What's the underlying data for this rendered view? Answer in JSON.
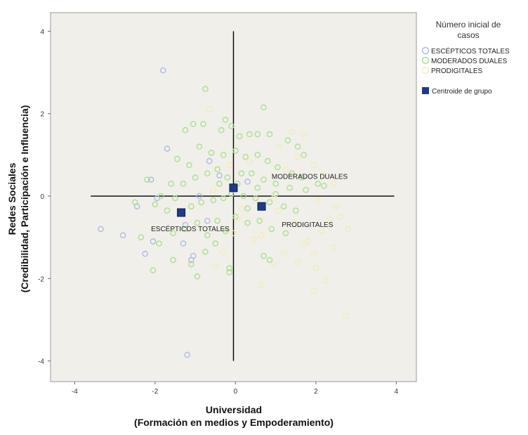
{
  "chart_data": {
    "type": "scatter",
    "xlabel_line1": "Universidad",
    "xlabel_line2": "(Formación en medios y Empoderamiento)",
    "ylabel_line1": "Redes Sociales",
    "ylabel_line2": "(Credibilidad, Participación e Influencia)",
    "xlim": [
      -4.6,
      4.5
    ],
    "ylim": [
      -4.5,
      4.45
    ],
    "xticks": [
      -4,
      -2,
      0,
      2,
      4
    ],
    "yticks": [
      -4,
      -2,
      0,
      2,
      4
    ],
    "grid": false,
    "legend": {
      "position": "right",
      "title_line1": "Número inicial de",
      "title_line2": "casos",
      "centroid_label": "Centroide de grupo"
    },
    "colors": {
      "background": "#f0efe9",
      "centroid": "#1f3b88",
      "axis_lines": "#000000"
    },
    "reference_lines": {
      "x_center": -0.05,
      "y_center": 0,
      "x_from": -3.6,
      "x_to": 3.95,
      "y_from": -4.0,
      "y_to": 4.0
    },
    "series": [
      {
        "name": "ESCÉPTICOS TOTALES",
        "color": "#a9b8e6",
        "points": [
          [
            -1.8,
            3.05
          ],
          [
            -1.7,
            1.15
          ],
          [
            -2.1,
            0.4
          ],
          [
            -1.95,
            -0.05
          ],
          [
            -2.45,
            -0.25
          ],
          [
            -3.35,
            -0.8
          ],
          [
            -2.8,
            -0.95
          ],
          [
            -2.05,
            -1.1
          ],
          [
            -2.25,
            -1.4
          ],
          [
            -1.3,
            -1.15
          ],
          [
            -1.1,
            -1.55
          ],
          [
            -1.05,
            -1.45
          ],
          [
            -0.7,
            -0.6
          ],
          [
            -1.2,
            -3.85
          ],
          [
            -1.25,
            -0.7
          ],
          [
            -0.65,
            0.85
          ],
          [
            -0.4,
            0.5
          ],
          [
            0.3,
            0.35
          ],
          [
            -0.9,
            0.0
          ]
        ]
      },
      {
        "name": "MODERADOS DUALES",
        "color": "#a6df8a",
        "points": [
          [
            -0.75,
            2.6
          ],
          [
            0.7,
            2.15
          ],
          [
            -1.25,
            1.6
          ],
          [
            -1.05,
            1.75
          ],
          [
            -0.8,
            1.75
          ],
          [
            -0.35,
            1.6
          ],
          [
            -0.25,
            1.85
          ],
          [
            -0.1,
            1.7
          ],
          [
            0.1,
            1.45
          ],
          [
            0.35,
            1.5
          ],
          [
            0.55,
            1.5
          ],
          [
            0.85,
            1.5
          ],
          [
            1.3,
            1.35
          ],
          [
            1.55,
            1.2
          ],
          [
            1.7,
            1.0
          ],
          [
            -1.45,
            0.9
          ],
          [
            -1.15,
            0.75
          ],
          [
            -0.9,
            1.2
          ],
          [
            -0.6,
            1.05
          ],
          [
            -0.3,
            1.0
          ],
          [
            0.0,
            1.1
          ],
          [
            0.25,
            0.95
          ],
          [
            0.55,
            1.0
          ],
          [
            0.8,
            0.85
          ],
          [
            1.05,
            0.7
          ],
          [
            1.4,
            0.55
          ],
          [
            1.65,
            0.45
          ],
          [
            2.05,
            0.3
          ],
          [
            2.2,
            0.25
          ],
          [
            -2.2,
            0.4
          ],
          [
            -1.6,
            0.3
          ],
          [
            -1.3,
            0.3
          ],
          [
            -1.0,
            0.45
          ],
          [
            -0.7,
            0.55
          ],
          [
            -0.45,
            0.65
          ],
          [
            -0.2,
            0.45
          ],
          [
            0.15,
            0.55
          ],
          [
            0.4,
            0.55
          ],
          [
            0.7,
            0.4
          ],
          [
            1.0,
            0.3
          ],
          [
            1.35,
            0.2
          ],
          [
            1.75,
            0.15
          ],
          [
            -2.5,
            -0.15
          ],
          [
            -2.0,
            -0.2
          ],
          [
            -1.7,
            -0.35
          ],
          [
            -1.5,
            -0.05
          ],
          [
            -1.1,
            -0.25
          ],
          [
            -0.85,
            -0.15
          ],
          [
            -0.55,
            -0.1
          ],
          [
            -0.3,
            -0.05
          ],
          [
            -0.1,
            0.05
          ],
          [
            0.2,
            0.0
          ],
          [
            0.5,
            -0.05
          ],
          [
            0.85,
            -0.15
          ],
          [
            1.2,
            -0.25
          ],
          [
            1.5,
            -0.35
          ],
          [
            -2.35,
            -1.0
          ],
          [
            -1.9,
            -1.15
          ],
          [
            -1.55,
            -0.9
          ],
          [
            -1.25,
            -0.8
          ],
          [
            -0.95,
            -0.65
          ],
          [
            -0.7,
            -0.95
          ],
          [
            -0.45,
            -0.6
          ],
          [
            -0.25,
            -0.85
          ],
          [
            0.0,
            -0.5
          ],
          [
            0.3,
            -0.65
          ],
          [
            0.6,
            -0.6
          ],
          [
            0.9,
            -0.8
          ],
          [
            1.25,
            -0.9
          ],
          [
            -1.55,
            -1.55
          ],
          [
            -1.1,
            -1.65
          ],
          [
            -0.75,
            -1.35
          ],
          [
            -0.5,
            -1.15
          ],
          [
            -0.15,
            -1.75
          ],
          [
            -0.15,
            -1.85
          ],
          [
            0.7,
            -1.45
          ],
          [
            0.85,
            -1.55
          ],
          [
            -2.05,
            -1.8
          ],
          [
            -0.95,
            -1.95
          ],
          [
            -1.85,
            0.0
          ],
          [
            0.55,
            0.2
          ],
          [
            1.0,
            0.05
          ],
          [
            0.05,
            0.3
          ],
          [
            -0.4,
            0.3
          ],
          [
            0.3,
            -0.3
          ]
        ]
      },
      {
        "name": "PRODIGITALES",
        "color": "#f3ecb6",
        "points": [
          [
            -0.65,
            2.1
          ],
          [
            1.4,
            1.55
          ],
          [
            1.7,
            1.5
          ],
          [
            1.1,
            1.2
          ],
          [
            1.55,
            0.95
          ],
          [
            1.95,
            0.75
          ],
          [
            2.2,
            0.5
          ],
          [
            2.45,
            0.3
          ],
          [
            2.05,
            -0.1
          ],
          [
            2.5,
            -0.25
          ],
          [
            2.35,
            -0.55
          ],
          [
            2.8,
            -0.8
          ],
          [
            2.15,
            -0.85
          ],
          [
            1.5,
            -0.65
          ],
          [
            1.7,
            -1.15
          ],
          [
            1.95,
            -1.4
          ],
          [
            2.45,
            -1.25
          ],
          [
            1.55,
            -1.6
          ],
          [
            2.0,
            -1.75
          ],
          [
            2.25,
            -2.05
          ],
          [
            1.95,
            -2.3
          ],
          [
            2.75,
            -2.9
          ],
          [
            0.65,
            -2.15
          ],
          [
            0.95,
            -1.65
          ],
          [
            0.45,
            -1.05
          ],
          [
            0.05,
            -0.55
          ],
          [
            -0.3,
            -1.35
          ],
          [
            -0.5,
            -1.7
          ],
          [
            -0.05,
            -0.9
          ],
          [
            0.65,
            -0.95
          ],
          [
            1.05,
            -0.35
          ],
          [
            0.95,
            -0.05
          ],
          [
            0.35,
            0.85
          ],
          [
            -0.55,
            0.15
          ],
          [
            1.8,
            -1.1
          ],
          [
            2.6,
            -0.5
          ],
          [
            0.15,
            -0.3
          ],
          [
            1.25,
            0.65
          ],
          [
            -0.15,
            0.75
          ],
          [
            1.2,
            -1.4
          ]
        ]
      }
    ],
    "centroids": [
      {
        "name": "ESCÉPTICOS TOTALES",
        "x": -1.35,
        "y": -0.4
      },
      {
        "name": "MODERADOS DUALES",
        "x": -0.05,
        "y": 0.2
      },
      {
        "name": "PRODIGITALES",
        "x": 0.65,
        "y": -0.25
      }
    ],
    "annotations": [
      {
        "text": "MODERADOS DUALES",
        "x": 0.9,
        "y": 0.42
      },
      {
        "text": "PRODIGITALES",
        "x": 1.15,
        "y": -0.75
      },
      {
        "text": "ESCÉPTICOS TOTALES",
        "x": -2.1,
        "y": -0.85
      }
    ]
  }
}
